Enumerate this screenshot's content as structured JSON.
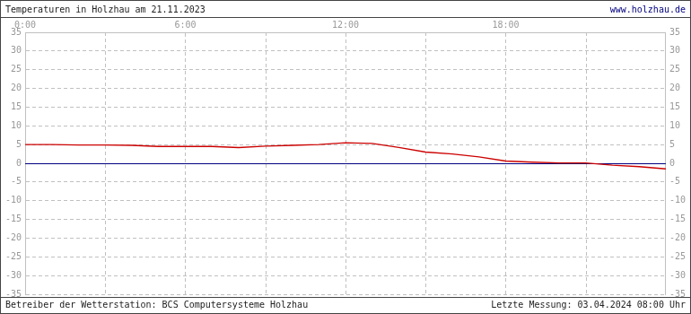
{
  "chart_data": {
    "type": "line",
    "title": "Temperaturen in Holzhau am 21.11.2023",
    "annotations": [
      "www.holzhau.de",
      "Betreiber der Wetterstation: BCS Computersysteme Holzhau",
      "Letzte Messung: 03.04.2024 08:00 Uhr"
    ],
    "x": [
      0,
      1,
      2,
      3,
      4,
      5,
      6,
      7,
      8,
      9,
      10,
      11,
      12,
      13,
      14,
      15,
      16,
      17,
      18,
      19,
      20,
      21,
      22,
      23,
      24
    ],
    "series": [
      {
        "color": "#cc0000",
        "values": [
          5.0,
          5.0,
          4.9,
          4.9,
          4.8,
          4.5,
          4.5,
          4.5,
          4.2,
          4.6,
          4.8,
          5.0,
          5.5,
          5.3,
          4.2,
          3.0,
          2.5,
          1.7,
          0.6,
          0.3,
          0.1,
          0.1,
          -0.5,
          -0.9,
          -1.5
        ]
      }
    ],
    "xlim": [
      0,
      24
    ],
    "xticks": [
      {
        "value": 0,
        "label": "0:00"
      },
      {
        "value": 6,
        "label": "6:00"
      },
      {
        "value": 12,
        "label": "12:00"
      },
      {
        "value": 18,
        "label": "18:00"
      }
    ],
    "ylim": [
      -35,
      35
    ],
    "yticks": [
      -35,
      -30,
      -25,
      -20,
      -15,
      -10,
      -5,
      0,
      5,
      10,
      15,
      20,
      25,
      30,
      35
    ],
    "grid": true
  }
}
